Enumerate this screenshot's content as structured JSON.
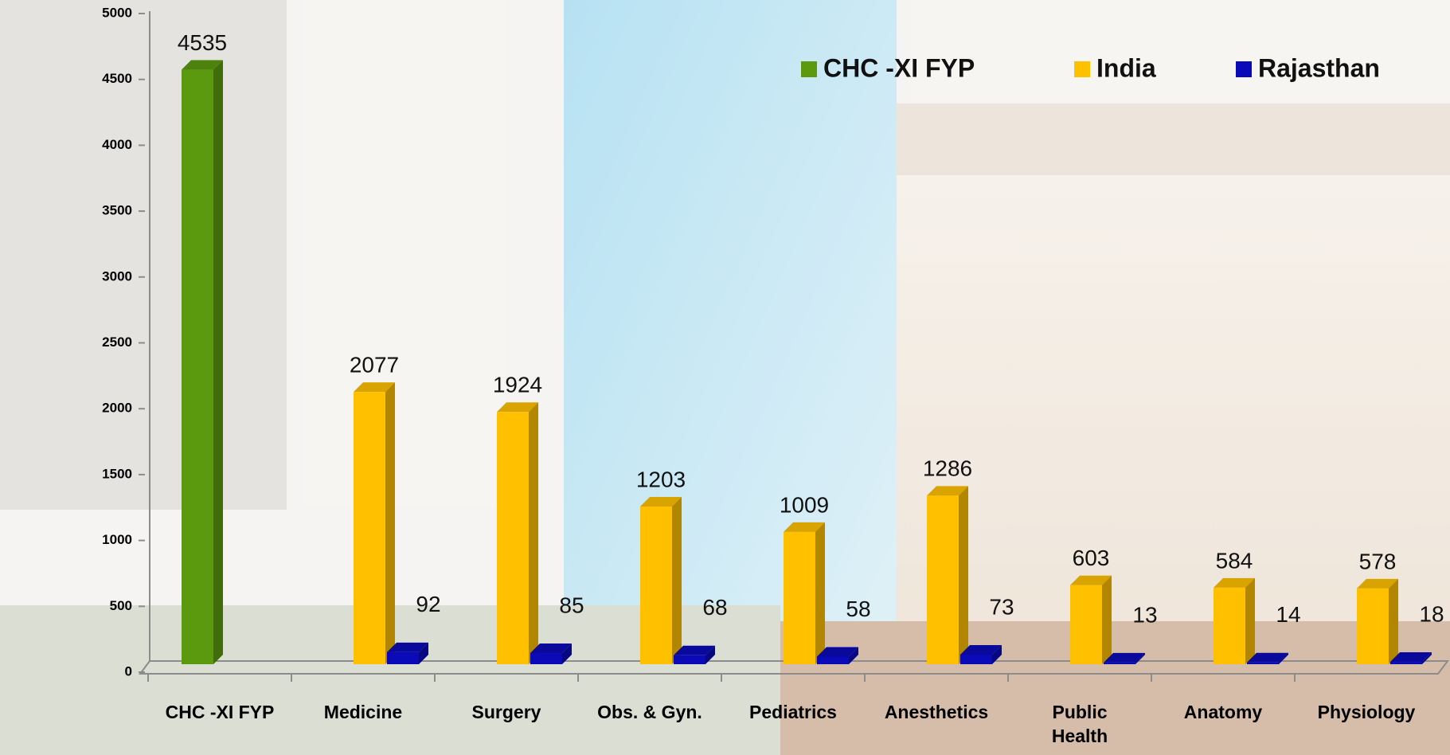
{
  "chart_data": {
    "type": "bar3d",
    "categories": [
      "CHC -XI FYP",
      "Medicine",
      "Surgery",
      "Obs. & Gyn.",
      "Pediatrics",
      "Anesthetics",
      "Public Health",
      "Anatomy",
      "Physiology"
    ],
    "series": [
      {
        "name": "CHC -XI FYP",
        "color": "#5b9a0e",
        "values": [
          4535,
          null,
          null,
          null,
          null,
          null,
          null,
          null,
          null
        ]
      },
      {
        "name": "India",
        "color": "#ffc000",
        "values": [
          null,
          2077,
          1924,
          1203,
          1009,
          1286,
          603,
          584,
          578
        ]
      },
      {
        "name": "Rajasthan",
        "color": "#0a0ab8",
        "values": [
          null,
          92,
          85,
          68,
          58,
          73,
          13,
          14,
          18
        ]
      }
    ],
    "ylim": [
      0,
      5000
    ],
    "yticks": [
      0,
      500,
      1000,
      1500,
      2000,
      2500,
      3000,
      3500,
      4000,
      4500,
      5000
    ],
    "legend": "top-right"
  }
}
